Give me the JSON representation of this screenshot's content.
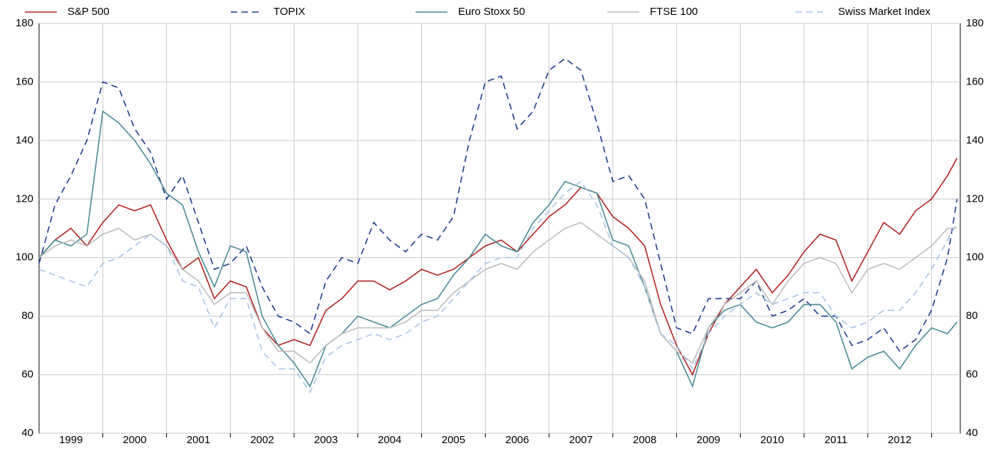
{
  "chart_data": {
    "type": "line",
    "x": [
      1999,
      1999.25,
      1999.5,
      1999.75,
      2000,
      2000.25,
      2000.5,
      2000.75,
      2001,
      2001.25,
      2001.5,
      2001.75,
      2002,
      2002.25,
      2002.5,
      2002.75,
      2003,
      2003.25,
      2003.5,
      2003.75,
      2004,
      2004.25,
      2004.5,
      2004.75,
      2005,
      2005.25,
      2005.5,
      2005.75,
      2006,
      2006.25,
      2006.5,
      2006.75,
      2007,
      2007.25,
      2007.5,
      2007.75,
      2008,
      2008.25,
      2008.5,
      2008.75,
      2009,
      2009.25,
      2009.5,
      2009.75,
      2010,
      2010.25,
      2010.5,
      2010.75,
      2011,
      2011.25,
      2011.5,
      2011.75,
      2012,
      2012.25,
      2012.5,
      2012.75,
      2013,
      2013.25,
      2013.4
    ],
    "series": [
      {
        "name": "S&P 500",
        "color": "#b22222",
        "dashed": false,
        "values": [
          100,
          106,
          110,
          104,
          112,
          118,
          116,
          118,
          106,
          96,
          100,
          86,
          92,
          90,
          76,
          70,
          72,
          70,
          82,
          86,
          92,
          92,
          89,
          92,
          96,
          94,
          96,
          100,
          104,
          106,
          102,
          108,
          114,
          118,
          124,
          122,
          114,
          110,
          104,
          84,
          70,
          60,
          74,
          84,
          90,
          96,
          88,
          94,
          102,
          108,
          106,
          92,
          102,
          112,
          108,
          116,
          120,
          128,
          134
        ]
      },
      {
        "name": "TOPIX",
        "color": "#1f3a8f",
        "dashed": true,
        "values": [
          98,
          118,
          128,
          140,
          160,
          158,
          144,
          136,
          120,
          128,
          112,
          96,
          98,
          104,
          90,
          80,
          78,
          74,
          92,
          100,
          98,
          112,
          106,
          102,
          108,
          106,
          114,
          140,
          160,
          162,
          144,
          150,
          164,
          168,
          164,
          146,
          126,
          128,
          120,
          98,
          76,
          74,
          86,
          86,
          86,
          92,
          80,
          82,
          86,
          80,
          80,
          70,
          72,
          76,
          68,
          72,
          82,
          100,
          120
        ]
      },
      {
        "name": "Euro Stoxx 50",
        "color": "#4a8a96",
        "dashed": false,
        "values": [
          100,
          106,
          104,
          108,
          150,
          146,
          140,
          132,
          122,
          118,
          102,
          90,
          104,
          102,
          80,
          70,
          64,
          56,
          70,
          74,
          80,
          78,
          76,
          80,
          84,
          86,
          94,
          100,
          108,
          104,
          102,
          112,
          118,
          126,
          124,
          122,
          106,
          104,
          90,
          74,
          68,
          56,
          76,
          82,
          84,
          78,
          76,
          78,
          84,
          84,
          78,
          62,
          66,
          68,
          62,
          70,
          76,
          74,
          78
        ]
      },
      {
        "name": "FTSE 100",
        "color": "#bdbdbd",
        "dashed": false,
        "values": [
          100,
          104,
          106,
          104,
          108,
          110,
          106,
          108,
          104,
          96,
          92,
          84,
          88,
          88,
          76,
          68,
          68,
          64,
          70,
          74,
          76,
          76,
          76,
          78,
          82,
          82,
          88,
          92,
          96,
          98,
          96,
          102,
          106,
          110,
          112,
          108,
          104,
          100,
          92,
          74,
          68,
          64,
          76,
          84,
          88,
          92,
          84,
          92,
          98,
          100,
          98,
          88,
          96,
          98,
          96,
          100,
          104,
          110,
          110
        ]
      },
      {
        "name": "Swiss Market Index",
        "color": "#a9c4e4",
        "dashed": true,
        "values": [
          96,
          94,
          92,
          90,
          98,
          100,
          104,
          108,
          104,
          92,
          90,
          76,
          86,
          86,
          68,
          62,
          62,
          54,
          66,
          70,
          72,
          74,
          72,
          74,
          78,
          80,
          86,
          92,
          98,
          100,
          100,
          110,
          116,
          122,
          126,
          118,
          104,
          100,
          90,
          74,
          70,
          62,
          74,
          80,
          84,
          88,
          84,
          86,
          88,
          88,
          80,
          76,
          78,
          82,
          82,
          88,
          96,
          106,
          112
        ]
      }
    ],
    "xlim": [
      1999,
      2013.45
    ],
    "xticks": [
      {
        "value": 1999.5,
        "label": "1999"
      },
      {
        "value": 2000.5,
        "label": "2000"
      },
      {
        "value": 2001.5,
        "label": "2001"
      },
      {
        "value": 2002.5,
        "label": "2002"
      },
      {
        "value": 2003.5,
        "label": "2003"
      },
      {
        "value": 2004.5,
        "label": "2004"
      },
      {
        "value": 2005.5,
        "label": "2005"
      },
      {
        "value": 2006.5,
        "label": "2006"
      },
      {
        "value": 2007.5,
        "label": "2007"
      },
      {
        "value": 2008.5,
        "label": "2008"
      },
      {
        "value": 2009.5,
        "label": "2009"
      },
      {
        "value": 2010.5,
        "label": "2010"
      },
      {
        "value": 2011.5,
        "label": "2011"
      },
      {
        "value": 2012.5,
        "label": "2012"
      }
    ],
    "ylim": [
      40,
      180
    ],
    "yticks": [
      40,
      60,
      80,
      100,
      120,
      140,
      160,
      180
    ],
    "y2lim": [
      40,
      180
    ],
    "y2ticks": [
      40,
      60,
      80,
      100,
      120,
      140,
      160,
      180
    ],
    "grid": true,
    "legend": "top"
  }
}
